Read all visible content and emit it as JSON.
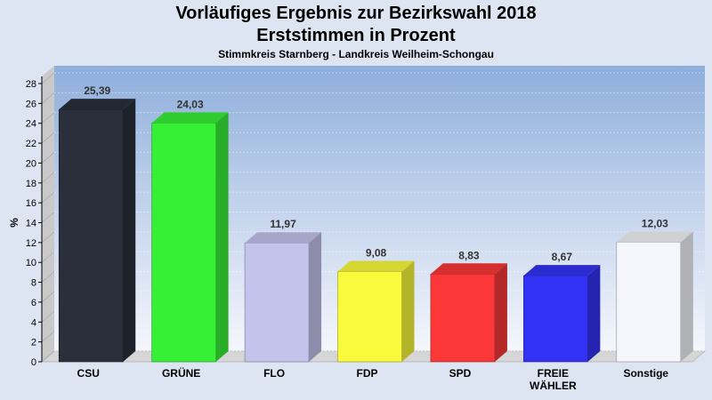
{
  "header": {
    "title_line1": "Vorläufiges Ergebnis zur Bezirkswahl 2018",
    "title_line2": "Erststimmen in Prozent",
    "subtitle": "Stimmkreis Starnberg - Landkreis Weilheim-Schongau"
  },
  "chart_data": {
    "type": "bar",
    "title": "Vorläufiges Ergebnis zur Bezirkswahl 2018 Erststimmen in Prozent",
    "subtitle": "Stimmkreis Starnberg - Landkreis Weilheim-Schongau",
    "xlabel": "",
    "ylabel": "%",
    "ylim": [
      0,
      28
    ],
    "yticks": [
      0,
      2,
      4,
      6,
      8,
      10,
      12,
      14,
      16,
      18,
      20,
      22,
      24,
      26,
      28
    ],
    "grid": true,
    "legend": "none",
    "categories": [
      "CSU",
      "GRÜNE",
      "FLO",
      "FDP",
      "SPD",
      "FREIE WÄHLER",
      "Sonstige"
    ],
    "category_lines": [
      [
        "CSU"
      ],
      [
        "GRÜNE"
      ],
      [
        "FLO"
      ],
      [
        "FDP"
      ],
      [
        "SPD"
      ],
      [
        "FREIE",
        "WÄHLER"
      ],
      [
        "Sonstige"
      ]
    ],
    "values": [
      25.39,
      24.03,
      11.97,
      9.08,
      8.83,
      8.67,
      12.03
    ],
    "value_labels": [
      "25,39",
      "24,03",
      "11,97",
      "9,08",
      "8,83",
      "8,67",
      "12,03"
    ],
    "colors": [
      "#2a2f3b",
      "#36f036",
      "#c4c3ec",
      "#fafa3c",
      "#fb3737",
      "#3232f5",
      "#f4f6fb"
    ]
  }
}
